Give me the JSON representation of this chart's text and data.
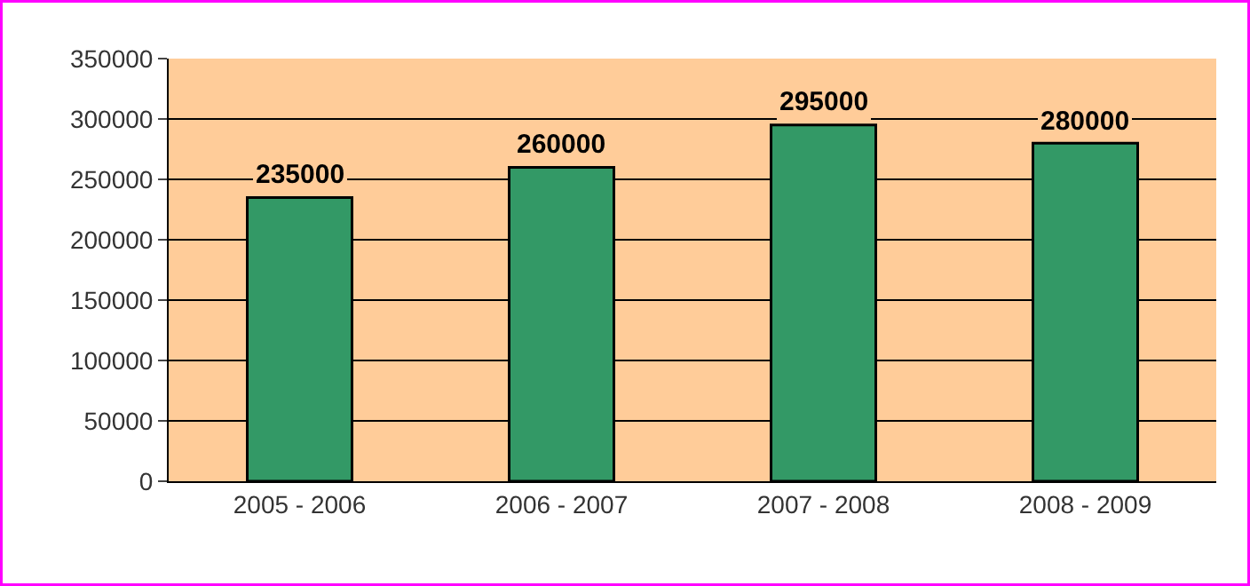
{
  "chart_data": {
    "type": "bar",
    "categories": [
      "2005 - 2006",
      "2006 - 2007",
      "2007 - 2008",
      "2008 - 2009"
    ],
    "values": [
      235000,
      260000,
      295000,
      280000
    ],
    "color": "#339966",
    "ylim": [
      0,
      350000
    ],
    "yticks": [
      0,
      50000,
      100000,
      150000,
      200000,
      250000,
      300000,
      350000
    ],
    "grid": "y",
    "data_labels": true
  }
}
